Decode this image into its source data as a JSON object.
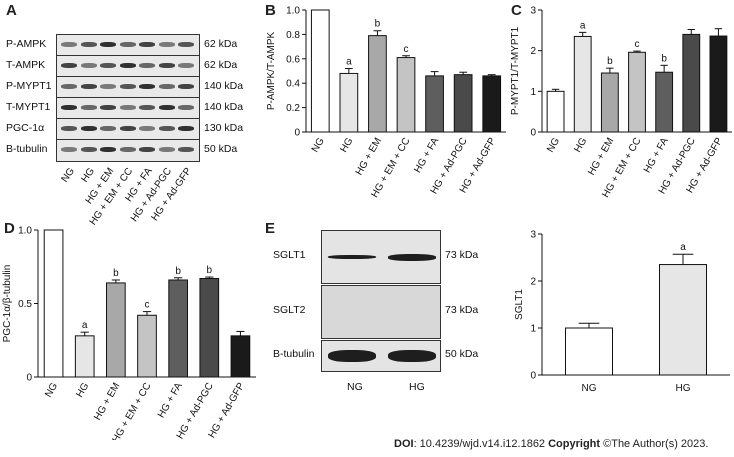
{
  "panels": {
    "A": {
      "letter": "A",
      "blots": [
        {
          "label": "P-AMPK",
          "kda": "62 kDa"
        },
        {
          "label": "T-AMPK",
          "kda": "62 kDa"
        },
        {
          "label": "P-MYPT1",
          "kda": "140 kDa"
        },
        {
          "label": "T-MYPT1",
          "kda": "140 kDa"
        },
        {
          "label": "PGC-1α",
          "kda": "130 kDa"
        },
        {
          "label": "B-tubulin",
          "kda": "50 kDa"
        }
      ],
      "lanes": [
        "NG",
        "HG",
        "HG + EM",
        "HG + EM + CC",
        "HG + FA",
        "HG + Ad-PGC",
        "HG + Ad-GFP"
      ]
    },
    "E": {
      "letter": "E",
      "blots": [
        {
          "label": "SGLT1",
          "kda": "73 kDa"
        },
        {
          "label": "SGLT2",
          "kda": "73 kDa"
        },
        {
          "label": "B-tubulin",
          "kda": "50 kDa"
        }
      ],
      "lanes": [
        "NG",
        "HG"
      ]
    }
  },
  "chart_data": [
    {
      "letter": "B",
      "type": "bar",
      "categories": [
        "NG",
        "HG",
        "HG + EM",
        "HG + EM + CC",
        "HG + FA",
        "HG + Ad-PGC",
        "HG + Ad-GFP"
      ],
      "values": [
        1.0,
        0.48,
        0.79,
        0.61,
        0.46,
        0.47,
        0.46
      ],
      "errors": [
        0,
        0.04,
        0.04,
        0.015,
        0.035,
        0.02,
        0.01
      ],
      "sig": [
        "",
        "a",
        "b",
        "c",
        "",
        "",
        ""
      ],
      "fills": [
        "#ffffff",
        "#e6e6e6",
        "#a8a8a8",
        "#c4c4c4",
        "#5e5e5e",
        "#4a4a4a",
        "#1a1a1a"
      ],
      "ylabel": "P-AMPK/T-AMPK",
      "ylim": [
        0,
        1.0
      ],
      "yticks": [
        "0",
        "0.2",
        "0.4",
        "0.6",
        "0.8",
        "1.0"
      ]
    },
    {
      "letter": "C",
      "type": "bar",
      "categories": [
        "NG",
        "HG",
        "HG + EM",
        "HG + EM + CC",
        "HG + FA",
        "HG + Ad-PGC",
        "HG + Ad-GFP"
      ],
      "values": [
        1.0,
        2.35,
        1.45,
        1.96,
        1.47,
        2.4,
        2.36
      ],
      "errors": [
        0.05,
        0.1,
        0.12,
        0.03,
        0.17,
        0.12,
        0.18
      ],
      "sig": [
        "",
        "a",
        "b",
        "c",
        "b",
        "",
        ""
      ],
      "fills": [
        "#ffffff",
        "#e6e6e6",
        "#a8a8a8",
        "#c4c4c4",
        "#5e5e5e",
        "#4a4a4a",
        "#1a1a1a"
      ],
      "ylabel": "P-MYPT1/T-MYPT1",
      "ylim": [
        0,
        3
      ],
      "yticks": [
        "0",
        "1",
        "2",
        "3"
      ]
    },
    {
      "letter": "D",
      "type": "bar",
      "categories": [
        "NG",
        "HG",
        "HG + EM",
        "HG + EM + CC",
        "HG + FA",
        "HG + Ad-PGC",
        "HG + Ad-GFP"
      ],
      "values": [
        1.0,
        0.28,
        0.64,
        0.42,
        0.66,
        0.67,
        0.28
      ],
      "errors": [
        0,
        0.025,
        0.02,
        0.025,
        0.015,
        0.01,
        0.03
      ],
      "sig": [
        "",
        "a",
        "b",
        "c",
        "b",
        "b",
        ""
      ],
      "fills": [
        "#ffffff",
        "#e6e6e6",
        "#a8a8a8",
        "#c4c4c4",
        "#5e5e5e",
        "#4a4a4a",
        "#1a1a1a"
      ],
      "ylabel": "PGC-1α/β-tubulin",
      "ylim": [
        0,
        1.0
      ],
      "yticks": [
        "0",
        "0.5",
        "1.0"
      ]
    },
    {
      "letter": "",
      "type": "bar",
      "categories": [
        "NG",
        "HG"
      ],
      "values": [
        1.0,
        2.35
      ],
      "errors": [
        0.1,
        0.22
      ],
      "sig": [
        "",
        "a"
      ],
      "fills": [
        "#ffffff",
        "#e6e6e6"
      ],
      "ylabel": "SGLT1",
      "ylim": [
        0,
        3
      ],
      "yticks": [
        "0",
        "1",
        "2",
        "3"
      ]
    }
  ],
  "footer": {
    "doi_label": "DOI",
    "doi_text": ": 10.4239/wjd.v14.i12.1862 ",
    "copyright_label": "Copyright",
    "copyright_text": " ©The Author(s) 2023."
  }
}
